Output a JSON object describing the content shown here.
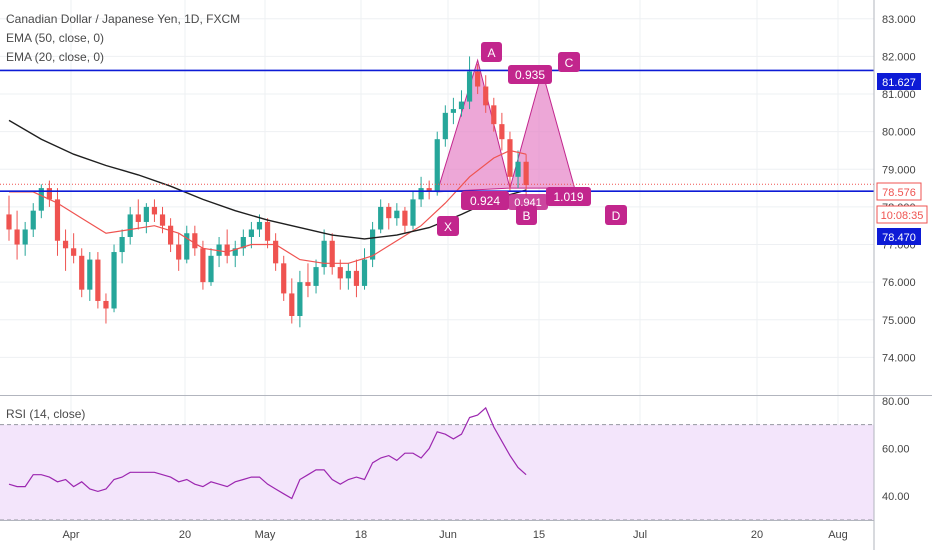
{
  "legend": {
    "title": "Canadian Dollar / Japanese Yen, 1D, FXCM",
    "ema50": "EMA (50, close, 0)",
    "ema20": "EMA (20, close, 0)",
    "rsi": "RSI (14, close)"
  },
  "price_labels": {
    "resistance": "81.627",
    "last": "78.576",
    "countdown": "10:08:35",
    "support": "78.470"
  },
  "pattern": {
    "points": {
      "X": "X",
      "A": "A",
      "B": "B",
      "C": "C",
      "D": "D"
    },
    "ratios": {
      "xab": "0.924",
      "abc": "0.935",
      "bcd": "1.019",
      "xbd": "0.941"
    }
  },
  "colors": {
    "up": "#26a69a",
    "down": "#ef5350",
    "ema50": "#1f1f1f",
    "ema20": "#ef5350",
    "levels": "#0d1bd6",
    "pattern_fill": "#e582c6",
    "pattern_label": "#c2268d",
    "rsi_line": "#9c27b0",
    "rsi_band": "#f3e5fb"
  },
  "chart_data": [
    {
      "type": "candlestick",
      "title": "Canadian Dollar / Japanese Yen, 1D, FXCM",
      "x_ticks": [
        "Apr",
        "20",
        "May",
        "18",
        "Jun",
        "15",
        "Jul",
        "20",
        "Aug"
      ],
      "y_ticks": [
        74.0,
        75.0,
        76.0,
        77.0,
        78.0,
        79.0,
        80.0,
        81.0,
        82.0,
        83.0
      ],
      "ylim": [
        73.0,
        83.5
      ],
      "candles": [
        [
          77.8,
          78.3,
          77.1,
          77.4
        ],
        [
          77.4,
          77.9,
          76.6,
          77.0
        ],
        [
          77.0,
          77.6,
          76.7,
          77.4
        ],
        [
          77.4,
          78.1,
          77.2,
          77.9
        ],
        [
          77.9,
          78.6,
          77.7,
          78.5
        ],
        [
          78.5,
          78.7,
          78.0,
          78.2
        ],
        [
          78.2,
          78.5,
          76.7,
          77.1
        ],
        [
          77.1,
          77.4,
          76.3,
          76.9
        ],
        [
          76.9,
          77.3,
          76.5,
          76.7
        ],
        [
          76.7,
          76.9,
          75.6,
          75.8
        ],
        [
          75.8,
          76.8,
          75.5,
          76.6
        ],
        [
          76.6,
          76.8,
          75.3,
          75.5
        ],
        [
          75.5,
          75.7,
          74.9,
          75.3
        ],
        [
          75.3,
          77.0,
          75.2,
          76.8
        ],
        [
          76.8,
          77.4,
          76.5,
          77.2
        ],
        [
          77.2,
          78.0,
          77.0,
          77.8
        ],
        [
          77.8,
          78.2,
          77.4,
          77.6
        ],
        [
          77.6,
          78.1,
          77.3,
          78.0
        ],
        [
          78.0,
          78.2,
          77.6,
          77.8
        ],
        [
          77.8,
          78.0,
          77.3,
          77.5
        ],
        [
          77.5,
          77.7,
          76.8,
          77.0
        ],
        [
          77.0,
          77.3,
          76.3,
          76.6
        ],
        [
          76.6,
          77.5,
          76.5,
          77.3
        ],
        [
          77.3,
          77.5,
          76.7,
          76.9
        ],
        [
          76.9,
          77.1,
          75.8,
          76.0
        ],
        [
          76.0,
          76.9,
          75.9,
          76.7
        ],
        [
          76.7,
          77.2,
          76.4,
          77.0
        ],
        [
          77.0,
          77.4,
          76.5,
          76.7
        ],
        [
          76.7,
          77.1,
          76.4,
          76.9
        ],
        [
          76.9,
          77.4,
          76.7,
          77.2
        ],
        [
          77.2,
          77.6,
          76.9,
          77.4
        ],
        [
          77.4,
          77.8,
          77.2,
          77.6
        ],
        [
          77.6,
          77.7,
          76.9,
          77.1
        ],
        [
          77.1,
          77.3,
          76.3,
          76.5
        ],
        [
          76.5,
          76.7,
          75.5,
          75.7
        ],
        [
          75.7,
          76.1,
          74.9,
          75.1
        ],
        [
          75.1,
          76.3,
          74.8,
          76.0
        ],
        [
          76.0,
          76.5,
          75.6,
          75.9
        ],
        [
          75.9,
          76.6,
          75.7,
          76.4
        ],
        [
          76.4,
          77.4,
          76.2,
          77.1
        ],
        [
          77.1,
          77.3,
          76.2,
          76.4
        ],
        [
          76.4,
          76.6,
          75.8,
          76.1
        ],
        [
          76.1,
          76.5,
          75.8,
          76.3
        ],
        [
          76.3,
          76.6,
          75.6,
          75.9
        ],
        [
          75.9,
          76.9,
          75.8,
          76.6
        ],
        [
          76.6,
          77.6,
          76.4,
          77.4
        ],
        [
          77.4,
          78.2,
          77.3,
          78.0
        ],
        [
          78.0,
          78.1,
          77.4,
          77.7
        ],
        [
          77.7,
          78.1,
          77.5,
          77.9
        ],
        [
          77.9,
          78.0,
          77.3,
          77.5
        ],
        [
          77.5,
          78.4,
          77.4,
          78.2
        ],
        [
          78.2,
          78.8,
          78.0,
          78.5
        ],
        [
          78.5,
          78.7,
          78.2,
          78.4
        ],
        [
          78.4,
          80.0,
          78.3,
          79.8
        ],
        [
          79.8,
          80.7,
          79.6,
          80.5
        ],
        [
          80.5,
          80.9,
          80.2,
          80.6
        ],
        [
          80.6,
          81.1,
          80.4,
          80.8
        ],
        [
          80.8,
          82.0,
          80.6,
          81.6
        ],
        [
          81.6,
          81.8,
          81.0,
          81.2
        ],
        [
          81.2,
          81.5,
          80.5,
          80.7
        ],
        [
          80.7,
          80.9,
          80.0,
          80.2
        ],
        [
          80.2,
          80.5,
          79.5,
          79.8
        ],
        [
          79.8,
          80.0,
          78.4,
          78.8
        ],
        [
          78.8,
          79.5,
          78.5,
          79.2
        ],
        [
          79.2,
          79.4,
          78.3,
          78.58
        ]
      ],
      "ema20_points": [
        [
          0,
          78.4
        ],
        [
          3,
          78.4
        ],
        [
          6,
          78.1
        ],
        [
          9,
          77.7
        ],
        [
          12,
          77.3
        ],
        [
          15,
          77.4
        ],
        [
          18,
          77.5
        ],
        [
          21,
          77.3
        ],
        [
          24,
          76.9
        ],
        [
          27,
          76.8
        ],
        [
          30,
          77.0
        ],
        [
          33,
          77.0
        ],
        [
          36,
          76.6
        ],
        [
          39,
          76.5
        ],
        [
          42,
          76.5
        ],
        [
          45,
          76.7
        ],
        [
          48,
          77.1
        ],
        [
          51,
          77.5
        ],
        [
          54,
          78.1
        ],
        [
          57,
          78.8
        ],
        [
          60,
          79.3
        ],
        [
          62,
          79.5
        ],
        [
          64,
          79.4
        ]
      ],
      "ema50_points": [
        [
          0,
          80.3
        ],
        [
          4,
          79.8
        ],
        [
          8,
          79.4
        ],
        [
          12,
          79.1
        ],
        [
          16,
          78.85
        ],
        [
          20,
          78.55
        ],
        [
          24,
          78.2
        ],
        [
          28,
          77.9
        ],
        [
          32,
          77.65
        ],
        [
          36,
          77.45
        ],
        [
          40,
          77.25
        ],
        [
          44,
          77.15
        ],
        [
          48,
          77.25
        ],
        [
          52,
          77.45
        ],
        [
          56,
          77.8
        ],
        [
          60,
          78.2
        ],
        [
          64,
          78.45
        ]
      ],
      "levels": [
        81.627,
        78.576,
        78.47
      ],
      "harmonic_points": {
        "X": [
          53,
          78.4
        ],
        "A": [
          58,
          81.9
        ],
        "B": [
          62,
          78.5
        ],
        "C": [
          66,
          81.6
        ],
        "D": [
          70,
          78.5
        ]
      }
    },
    {
      "type": "line",
      "title": "RSI (14, close)",
      "y_ticks": [
        40.0,
        60.0,
        80.0
      ],
      "ylim": [
        30,
        82
      ],
      "band": [
        30,
        70
      ],
      "values": [
        45,
        44,
        44,
        49,
        49,
        48,
        46,
        47,
        44,
        46,
        43,
        42,
        43,
        47,
        48,
        50,
        50,
        50,
        50,
        49,
        48,
        46,
        47,
        45,
        44,
        46,
        45,
        44,
        46,
        47,
        48,
        48,
        45,
        43,
        41,
        39,
        47,
        49,
        51,
        51,
        47,
        45,
        47,
        48,
        47,
        54,
        56,
        57,
        55,
        58,
        58,
        56,
        60,
        67,
        66,
        64,
        66,
        73,
        74,
        77,
        69,
        63,
        57,
        52,
        49
      ]
    }
  ]
}
